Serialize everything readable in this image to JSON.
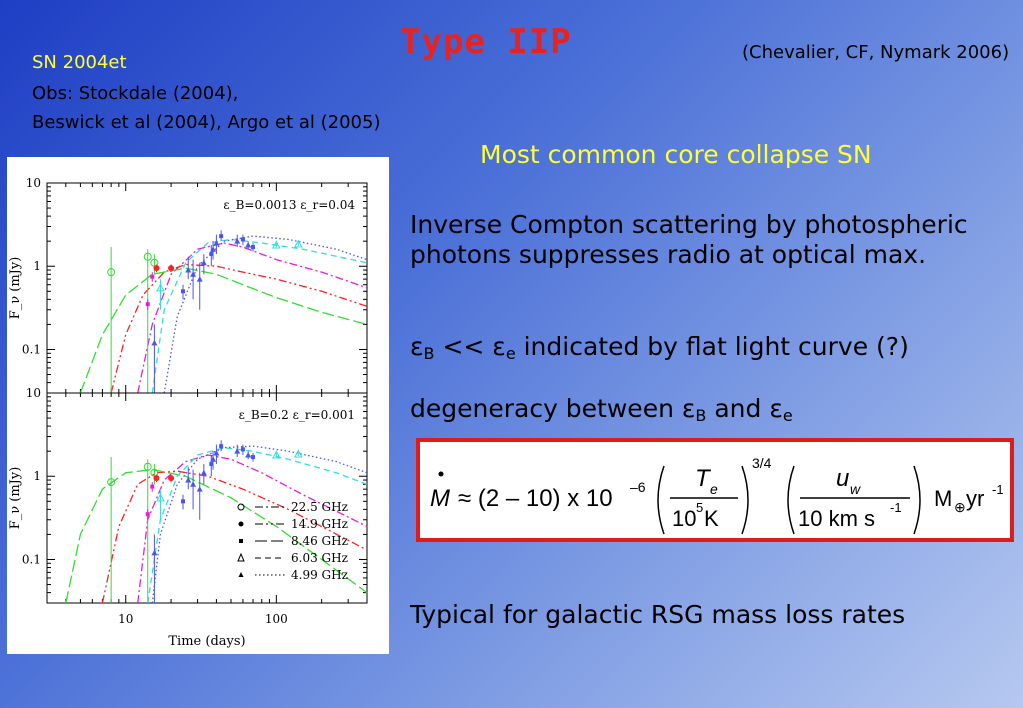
{
  "slide": {
    "title": "Type IIP",
    "citation": "(Chevalier, CF, Nymark 2006)",
    "sn_name": "SN 2004et",
    "obs_line1": "Obs: Stockdale (2004),",
    "obs_line2": "Beswick et al (2004), Argo et al (2005)",
    "subtitle": "Most common core collapse SN",
    "inverse_compton": "Inverse Compton scattering by photospheric photons suppresses radio at optical max.",
    "eps_symbol": "ε",
    "eps_b_sub": "B",
    "eps_e_sub": "e",
    "eps_relation": " << ",
    "flat_light_curve": " indicated by flat light curve (?)",
    "degeneracy_prefix": "degeneracy between ",
    "degeneracy_and": " and ",
    "typical": "Typical for galactic RSG mass loss rates"
  },
  "equation": {
    "mdot": "M",
    "approx": "≈ (2 – 10) x 10",
    "exp_neg6": "–6",
    "te": "T",
    "te_sub": "e",
    "te_denom": "10",
    "te_denom_exp": "5",
    "te_denom_unit": " K",
    "power_34": "3/4",
    "uw": "u",
    "uw_sub": "w",
    "uw_denom": "10 km s",
    "uw_denom_exp": "-1",
    "unit_m": "M",
    "unit_sun": "⊕",
    "unit_yr": "yr",
    "unit_yr_exp": "-1"
  },
  "chart_data": [
    {
      "type": "line",
      "panel": "top",
      "annotation": "ε_B=0.0013  ε_r=0.04",
      "xlabel": "Time (days)",
      "ylabel": "F_ν (mJy)",
      "xscale": "log",
      "yscale": "log",
      "xlim": [
        3,
        400
      ],
      "ylim": [
        0.03,
        10
      ],
      "xticks": [
        "10",
        "100"
      ],
      "yticks": [
        "10",
        "1",
        "0.1"
      ],
      "series": [
        {
          "name": "22.5 GHz",
          "color": "#e81cd8",
          "style": "dash-dot",
          "x": [
            12,
            15,
            20,
            30,
            45,
            60,
            100,
            200,
            400
          ],
          "y": [
            0.03,
            0.2,
            0.8,
            1.6,
            1.9,
            1.7,
            1.2,
            0.85,
            0.55
          ]
        },
        {
          "name": "14.9 GHz",
          "color": "#ff2020",
          "style": "dash-dot-dot",
          "x": [
            8,
            10,
            13,
            18,
            25,
            40,
            60,
            100,
            200,
            400
          ],
          "y": [
            0.03,
            0.15,
            0.45,
            0.85,
            1.05,
            1.0,
            0.85,
            0.7,
            0.5,
            0.33
          ]
        },
        {
          "name": "8.46 GHz",
          "color": "#33dd33",
          "style": "long-dash",
          "x": [
            5,
            7,
            10,
            15,
            25,
            40,
            60,
            100,
            200,
            400
          ],
          "y": [
            0.03,
            0.15,
            0.45,
            0.8,
            0.95,
            0.8,
            0.6,
            0.42,
            0.28,
            0.2
          ]
        },
        {
          "name": "6.03 GHz",
          "color": "#33dddd",
          "style": "dash",
          "x": [
            15,
            18,
            25,
            35,
            50,
            80,
            150,
            400
          ],
          "y": [
            0.03,
            0.3,
            1.1,
            1.9,
            2.1,
            1.9,
            1.6,
            1.1
          ]
        },
        {
          "name": "4.99 GHz",
          "color": "#4a55ee",
          "style": "dotted",
          "x": [
            18,
            22,
            30,
            45,
            70,
            120,
            250,
            400
          ],
          "y": [
            0.03,
            0.25,
            1.0,
            2.0,
            2.3,
            2.1,
            1.6,
            1.2
          ]
        }
      ]
    },
    {
      "type": "line",
      "panel": "bottom",
      "annotation": "ε_B=0.2  ε_r=0.001",
      "xlabel": "Time (days)",
      "ylabel": "F_ν (mJy)",
      "xscale": "log",
      "yscale": "log",
      "xlim": [
        3,
        400
      ],
      "ylim": [
        0.03,
        10
      ],
      "xticks": [
        "10",
        "100"
      ],
      "yticks": [
        "10",
        "1",
        "0.1"
      ],
      "legend_position": "bottom-right",
      "legend": [
        "22.5 GHz",
        "14.9 GHz",
        "8.46 GHz",
        "6.03 GHz",
        "4.99 GHz"
      ],
      "series": [
        {
          "name": "22.5 GHz",
          "color": "#e81cd8",
          "style": "dash-dot",
          "x": [
            12,
            14,
            18,
            25,
            35,
            50,
            80,
            150,
            400
          ],
          "y": [
            0.03,
            0.3,
            0.9,
            1.5,
            1.8,
            1.6,
            1.1,
            0.6,
            0.25
          ]
        },
        {
          "name": "14.9 GHz",
          "color": "#ff2020",
          "style": "dash-dot-dot",
          "x": [
            7,
            9,
            12,
            16,
            22,
            35,
            60,
            120,
            400
          ],
          "y": [
            0.03,
            0.25,
            0.8,
            1.1,
            1.15,
            1.0,
            0.7,
            0.4,
            0.13
          ]
        },
        {
          "name": "8.46 GHz",
          "color": "#33dd33",
          "style": "long-dash",
          "x": [
            4,
            5,
            7,
            10,
            15,
            25,
            50,
            100,
            200,
            400
          ],
          "y": [
            0.03,
            0.2,
            0.7,
            1.1,
            1.2,
            1.0,
            0.55,
            0.25,
            0.1,
            0.04
          ]
        },
        {
          "name": "6.03 GHz",
          "color": "#33dddd",
          "style": "dash",
          "x": [
            14,
            17,
            22,
            30,
            45,
            70,
            120,
            250,
            400
          ],
          "y": [
            0.03,
            0.3,
            1.0,
            1.8,
            2.2,
            2.0,
            1.6,
            1.1,
            0.8
          ]
        },
        {
          "name": "4.99 GHz",
          "color": "#4a55ee",
          "style": "dotted",
          "x": [
            15,
            17,
            22,
            30,
            45,
            70,
            120,
            250,
            400
          ],
          "y": [
            0.03,
            0.2,
            0.8,
            1.6,
            2.2,
            2.3,
            2.0,
            1.5,
            1.1
          ]
        }
      ]
    }
  ],
  "obs_points": [
    {
      "x": 8,
      "y": 0.85,
      "lo": 0.03,
      "hi": 1.7,
      "color": "#33dd33",
      "marker": "open-circle"
    },
    {
      "x": 14,
      "y": 1.3,
      "lo": 0.03,
      "hi": 1.6,
      "color": "#33dd33",
      "marker": "open-circle"
    },
    {
      "x": 15.5,
      "y": 1.1,
      "lo": 0.8,
      "hi": 1.4,
      "color": "#33dd33",
      "marker": "open-circle"
    },
    {
      "x": 14,
      "y": 0.35,
      "lo": 0.3,
      "hi": 0.4,
      "color": "#e81cd8",
      "marker": "square"
    },
    {
      "x": 15,
      "y": 0.75,
      "lo": 0.65,
      "hi": 0.85,
      "color": "#e81cd8",
      "marker": "square"
    },
    {
      "x": 16,
      "y": 0.95,
      "lo": 0.85,
      "hi": 1.05,
      "color": "#ff2020",
      "marker": "dot"
    },
    {
      "x": 20,
      "y": 0.95,
      "lo": 0.85,
      "hi": 1.05,
      "color": "#ff2020",
      "marker": "dot"
    },
    {
      "x": 15.5,
      "y": 0.12,
      "lo": 0.03,
      "hi": 0.2,
      "color": "#4a55ee",
      "marker": "triangle"
    },
    {
      "x": 17,
      "y": 0.55,
      "lo": 0.3,
      "hi": 0.7,
      "color": "#33dddd",
      "marker": "open-triangle"
    },
    {
      "x": 24,
      "y": 0.5,
      "lo": 0.4,
      "hi": 0.6,
      "color": "#4a55ee",
      "marker": "square"
    },
    {
      "x": 26,
      "y": 0.9,
      "lo": 0.7,
      "hi": 1.3,
      "color": "#4a55ee",
      "marker": "triangle"
    },
    {
      "x": 28,
      "y": 0.8,
      "lo": 0.4,
      "hi": 1.2,
      "color": "#4a55ee",
      "marker": "triangle"
    },
    {
      "x": 31,
      "y": 0.7,
      "lo": 0.3,
      "hi": 1.1,
      "color": "#4a55ee",
      "marker": "triangle"
    },
    {
      "x": 33,
      "y": 1.1,
      "lo": 0.8,
      "hi": 1.4,
      "color": "#4a55ee",
      "marker": "triangle"
    },
    {
      "x": 37,
      "y": 1.4,
      "lo": 1.0,
      "hi": 1.8,
      "color": "#4a55ee",
      "marker": "square"
    },
    {
      "x": 38,
      "y": 1.6,
      "lo": 1.2,
      "hi": 2.0,
      "color": "#4a55ee",
      "marker": "triangle"
    },
    {
      "x": 40,
      "y": 1.9,
      "lo": 1.4,
      "hi": 2.4,
      "color": "#4a55ee",
      "marker": "triangle"
    },
    {
      "x": 43,
      "y": 2.3,
      "lo": 2.0,
      "hi": 2.7,
      "color": "#4a55ee",
      "marker": "square"
    },
    {
      "x": 55,
      "y": 2.0,
      "lo": 1.7,
      "hi": 2.4,
      "color": "#4a55ee",
      "marker": "triangle"
    },
    {
      "x": 60,
      "y": 2.1,
      "lo": 1.8,
      "hi": 2.4,
      "color": "#4a55ee",
      "marker": "square"
    },
    {
      "x": 65,
      "y": 1.8,
      "lo": 1.6,
      "hi": 2.0,
      "color": "#4a55ee",
      "marker": "triangle"
    },
    {
      "x": 70,
      "y": 1.7,
      "lo": 1.5,
      "hi": 1.9,
      "color": "#4a55ee",
      "marker": "square"
    },
    {
      "x": 100,
      "y": 1.8,
      "lo": 1.7,
      "hi": 1.9,
      "color": "#33dddd",
      "marker": "open-triangle"
    },
    {
      "x": 140,
      "y": 1.85,
      "lo": 1.75,
      "hi": 1.95,
      "color": "#33dddd",
      "marker": "open-triangle"
    }
  ]
}
